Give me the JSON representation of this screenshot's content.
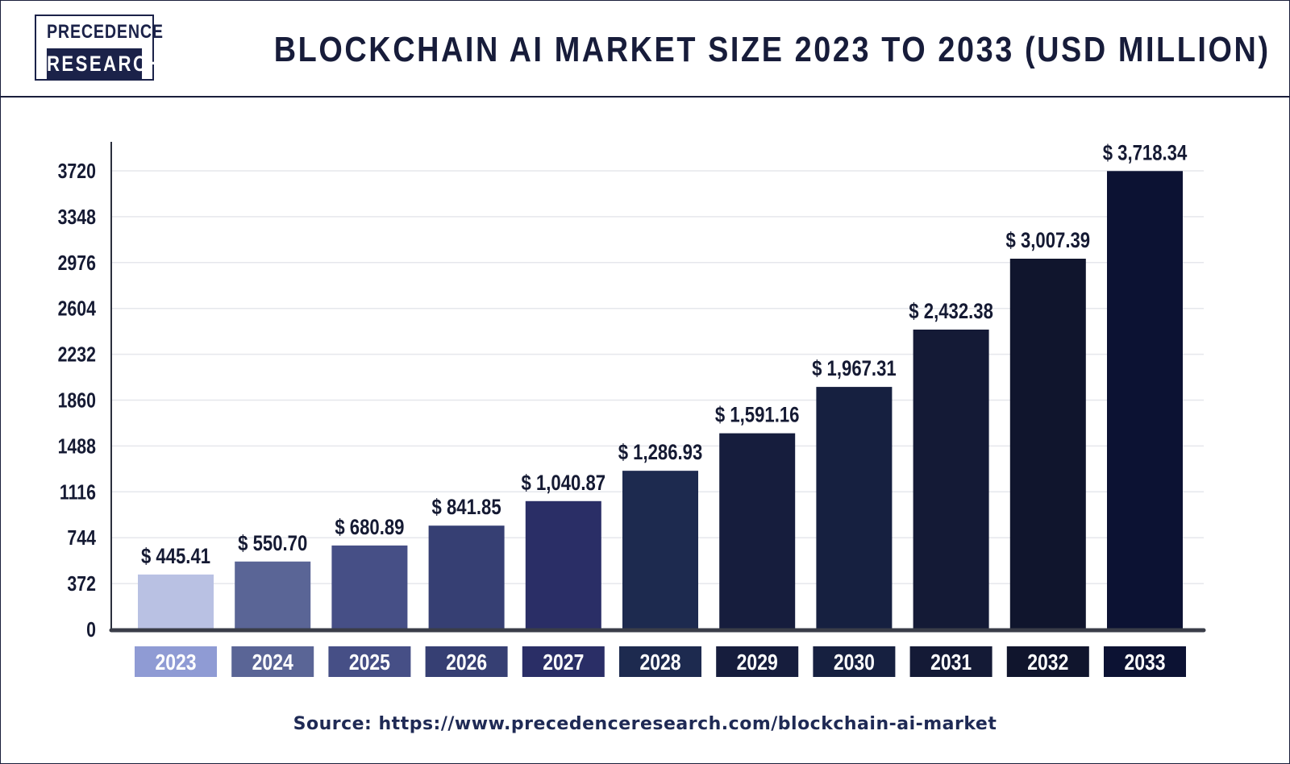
{
  "header": {
    "logo_top": "PRECEDENCE",
    "logo_bottom": "RESEARCH",
    "title": "BLOCKCHAIN AI MARKET SIZE 2023 TO 2033 (USD MILLION)"
  },
  "chart_data": {
    "type": "bar",
    "categories": [
      "2023",
      "2024",
      "2025",
      "2026",
      "2027",
      "2028",
      "2029",
      "2030",
      "2031",
      "2032",
      "2033"
    ],
    "values": [
      445.41,
      550.7,
      680.89,
      841.85,
      1040.87,
      1286.93,
      1591.16,
      1967.31,
      2432.38,
      3007.39,
      3718.34
    ],
    "value_labels": [
      "$ 445.41",
      "$ 550.70",
      "$ 680.89",
      "$ 841.85",
      "$ 1,040.87",
      "$ 1,286.93",
      "$ 1,591.16",
      "$ 1,967.31",
      "$ 2,432.38",
      "$ 3,007.39",
      "$ 3,718.34"
    ],
    "yticks": [
      0,
      372,
      744,
      1116,
      1488,
      1860,
      2232,
      2604,
      2976,
      3348,
      3720
    ],
    "ylim": [
      0,
      3720
    ],
    "grid": true,
    "bar_colors": [
      "#b9c1e3",
      "#5a6596",
      "#464f86",
      "#363f73",
      "#2a2e66",
      "#1d2a4f",
      "#161d3d",
      "#162040",
      "#141a36",
      "#10152d",
      "#0c1233"
    ],
    "category_box_colors": [
      "#8f9bd4",
      "#5a6596",
      "#464f86",
      "#363f73",
      "#2a2e66",
      "#1d2a4f",
      "#161d3d",
      "#162040",
      "#141a36",
      "#10152d",
      "#0c1233"
    ]
  },
  "footer": {
    "source": "Source: https://www.precedenceresearch.com/blockchain-ai-market"
  }
}
